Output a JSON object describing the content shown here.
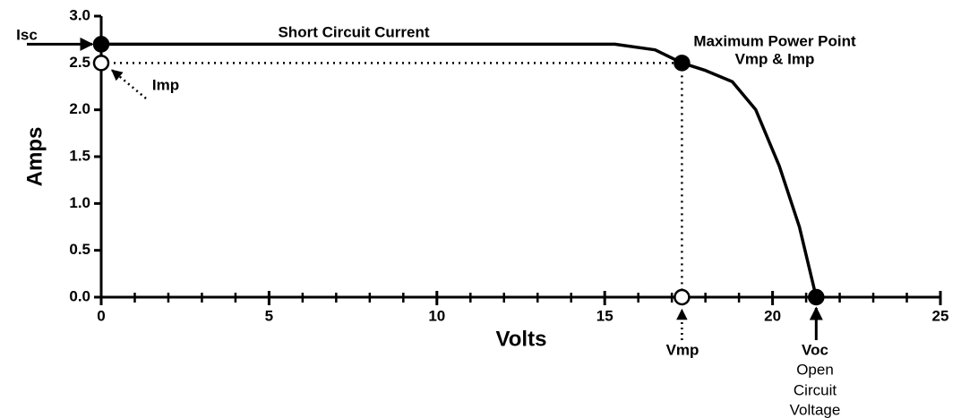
{
  "chart_data": {
    "type": "line",
    "xlabel": "Volts",
    "ylabel": "Amps",
    "xlim": [
      0,
      25
    ],
    "ylim": [
      0,
      3
    ],
    "xticks": [
      0,
      5,
      10,
      15,
      20,
      25
    ],
    "xminorticks": [
      0,
      1,
      2,
      3,
      4,
      5,
      6,
      7,
      8,
      9,
      10,
      11,
      12,
      13,
      14,
      15,
      16,
      17,
      18,
      19,
      20,
      21,
      22,
      23,
      24,
      25
    ],
    "yticks": [
      {
        "value": 0,
        "label": "0.0"
      },
      0.5,
      {
        "value": 1,
        "label": "1.0"
      },
      1.5,
      {
        "value": 2,
        "label": "2.0"
      },
      2.5,
      {
        "value": 3,
        "label": "3.0"
      }
    ],
    "series": [
      {
        "color": "#000000",
        "x": [
          0,
          15.3,
          16.5,
          17.3,
          18,
          18.8,
          19.5,
          20.2,
          20.8,
          21.3
        ],
        "values": [
          2.7,
          2.7,
          2.64,
          2.5,
          2.42,
          2.3,
          2.0,
          1.4,
          0.75,
          0
        ]
      }
    ],
    "points": [
      {
        "x": 0,
        "y": 2.7,
        "filled": true
      },
      {
        "x": 0,
        "y": 2.5,
        "filled": false
      },
      {
        "x": 17.3,
        "y": 2.5,
        "filled": true
      },
      {
        "x": 17.3,
        "y": 0,
        "filled": false
      },
      {
        "x": 21.3,
        "y": 0,
        "filled": true
      }
    ],
    "annotations": [
      "Isc",
      "Short Circuit Current",
      "Maximum Power Point",
      "Vmp & Imp",
      "Imp",
      "Vmp",
      "Voc",
      "Open",
      "Circuit",
      "Voltage"
    ]
  }
}
